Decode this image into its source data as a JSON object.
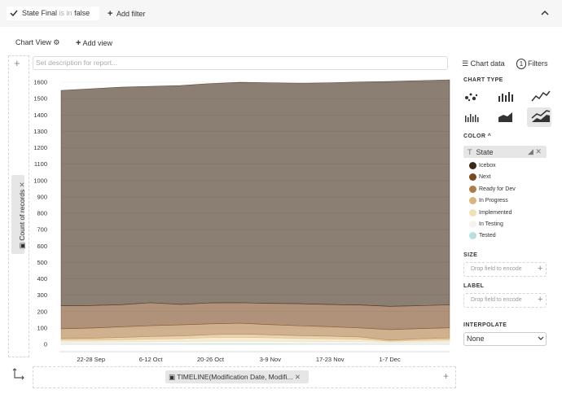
{
  "filter_bar": {
    "filter": {
      "field": "State Final",
      "operator": "is in",
      "value": "false"
    },
    "add_filter": "Add filter"
  },
  "view_bar": {
    "view": "Chart View",
    "add_view": "Add view"
  },
  "description_placeholder": "Set description for report...",
  "y_field": "Count of records",
  "x_field": "TIMELINE(Modification Date, Modifi...",
  "chart_data": {
    "type": "area",
    "stacked": true,
    "categories": [
      null,
      "22-28 Sep",
      null,
      "6-12 Oct",
      null,
      "20-26 Oct",
      null,
      "3-9 Nov",
      null,
      "17-23 Nov",
      null,
      "1-7 Dec",
      null,
      null
    ],
    "series": [
      {
        "name": "Icebox",
        "color": "#3d2814",
        "values": [
          1315,
          1323,
          1328,
          1321,
          1336,
          1339,
          1346,
          1347,
          1346,
          1354,
          1362,
          1373,
          1374,
          1374
        ]
      },
      {
        "name": "Next",
        "color": "#7a4a1f",
        "values": [
          140,
          138,
          135,
          140,
          125,
          128,
          125,
          130,
          135,
          135,
          140,
          142,
          140,
          140
        ]
      },
      {
        "name": "Ready for Dev",
        "color": "#b07d45",
        "values": [
          60,
          62,
          65,
          66,
          68,
          66,
          66,
          62,
          60,
          58,
          55,
          65,
          62,
          62
        ]
      },
      {
        "name": "In Progress",
        "color": "#d9b67e",
        "values": [
          10,
          12,
          14,
          16,
          16,
          18,
          20,
          18,
          17,
          16,
          14,
          6,
          10,
          12
        ]
      },
      {
        "name": "Implemented",
        "color": "#f0e0b8",
        "values": [
          12,
          12,
          14,
          16,
          18,
          22,
          24,
          22,
          20,
          18,
          16,
          8,
          12,
          14
        ]
      },
      {
        "name": "In Testing",
        "color": "#f6f3ee",
        "values": [
          10,
          10,
          11,
          12,
          13,
          14,
          14,
          13,
          12,
          12,
          11,
          8,
          9,
          10
        ]
      },
      {
        "name": "Tested",
        "color": "#b8e0dc",
        "values": [
          3,
          3,
          3,
          4,
          4,
          5,
          5,
          5,
          4,
          4,
          4,
          3,
          3,
          3
        ]
      }
    ],
    "ylim": [
      0,
      1620
    ],
    "yticks": [
      0,
      100,
      200,
      300,
      400,
      500,
      600,
      700,
      800,
      900,
      1000,
      1100,
      1200,
      1300,
      1400,
      1500,
      1600
    ],
    "grid": true
  },
  "panel": {
    "chart_data_tab": "Chart data",
    "filters_count": "1",
    "filters_tab": "Filters",
    "chart_type_label": "CHART TYPE",
    "color_label": "COLOR",
    "color_field": "State",
    "size_label": "SIZE",
    "size_placeholder": "Drop field to encode",
    "label_label": "LABEL",
    "label_placeholder": "Drop field to encode",
    "interpolate_label": "INTERPOLATE",
    "interpolate_value": "None"
  }
}
